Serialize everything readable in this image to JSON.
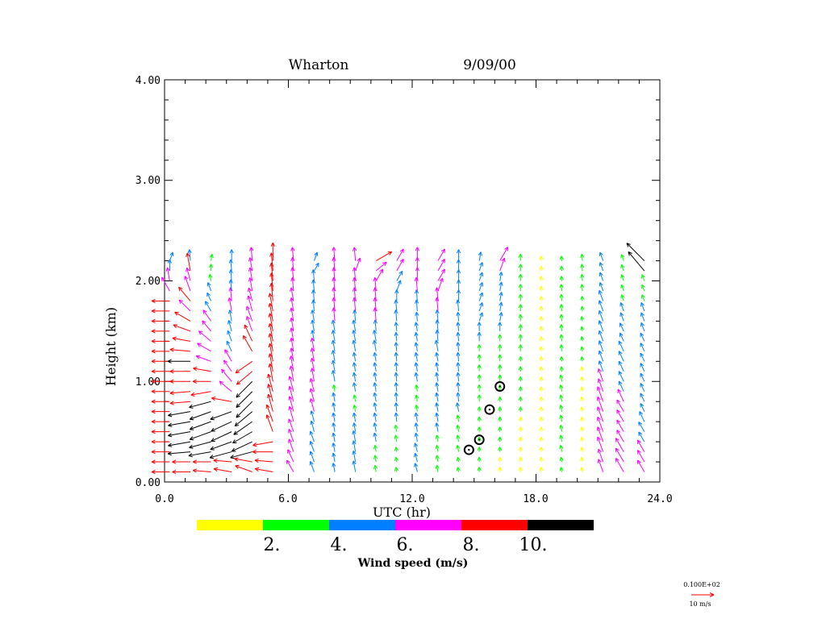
{
  "chart_data": {
    "type": "wind-profile",
    "title": "Wharton",
    "date": "9/09/00",
    "xlabel": "UTC (hr)",
    "ylabel": "Height (km)",
    "xlim": [
      0,
      24
    ],
    "ylim": [
      0,
      4
    ],
    "x_ticks": [
      "0.0",
      "6.0",
      "12.0",
      "18.0",
      "24.0"
    ],
    "y_ticks": [
      "0.00",
      "1.00",
      "2.00",
      "3.00",
      "4.00"
    ],
    "profile_times": [
      0.25,
      1.25,
      2.25,
      3.25,
      4.25,
      5.25,
      6.25,
      7.25,
      8.25,
      9.25,
      10.25,
      11.25,
      12.25,
      13.25,
      14.25,
      15.25,
      16.25,
      17.25,
      18.25,
      19.25,
      20.25,
      21.25,
      22.25,
      23.25
    ],
    "heights_km": [
      0.1,
      0.2,
      0.3,
      0.4,
      0.5,
      0.6,
      0.7,
      0.8,
      0.9,
      1.0,
      1.1,
      1.2,
      1.3,
      1.4,
      1.5,
      1.6,
      1.7,
      1.8,
      1.9,
      2.0,
      2.1,
      2.2
    ],
    "wind_speed_ms": [
      [
        8,
        8,
        8,
        8,
        8,
        8,
        8,
        8,
        8,
        8,
        8,
        8,
        8,
        8,
        8,
        8,
        8,
        8,
        7,
        6,
        5,
        4
      ],
      [
        8,
        8,
        10,
        10,
        10,
        10,
        10,
        9,
        9,
        9,
        9,
        10,
        9,
        8,
        8,
        8,
        7,
        8,
        7,
        6,
        8,
        5
      ],
      [
        8,
        8,
        10,
        10,
        10,
        10,
        10,
        10,
        9,
        8,
        8,
        7,
        7,
        7,
        6,
        6,
        5,
        4,
        4,
        3,
        3,
        3
      ],
      [
        8,
        8,
        10,
        10,
        10,
        10,
        10,
        9,
        7,
        7,
        6,
        6,
        5,
        5,
        5,
        5,
        6,
        6,
        5,
        5,
        5,
        5
      ],
      [
        8,
        8,
        10,
        10,
        10,
        10,
        10,
        10,
        10,
        10,
        9,
        9,
        8,
        8,
        7,
        7,
        7,
        6,
        6,
        6,
        6,
        6
      ],
      [
        8,
        8,
        9,
        9,
        8,
        8,
        8,
        8,
        8,
        8,
        8,
        8,
        8,
        8,
        8,
        8,
        8,
        8,
        8,
        8,
        8,
        8
      ],
      [
        6,
        6,
        6,
        6,
        6,
        7,
        7,
        7,
        7,
        7,
        7,
        6,
        6,
        6,
        6,
        6,
        6,
        6,
        6,
        6,
        6,
        6
      ],
      [
        5,
        5,
        5,
        5,
        5,
        5,
        6,
        6,
        6,
        6,
        6,
        6,
        6,
        5,
        5,
        5,
        5,
        5,
        5,
        5,
        4,
        4
      ],
      [
        4,
        4,
        4,
        4,
        4,
        4,
        4,
        4,
        3,
        5,
        5,
        5,
        5,
        5,
        5,
        6,
        6,
        6,
        6,
        6,
        6,
        6
      ],
      [
        5,
        5,
        5,
        5,
        4,
        4,
        3,
        3,
        4,
        4,
        4,
        4,
        5,
        5,
        5,
        5,
        6,
        6,
        6,
        6,
        6,
        6
      ],
      [
        3,
        3,
        3,
        4,
        4,
        4,
        4,
        4,
        4,
        4,
        4,
        4,
        5,
        5,
        5,
        6,
        6,
        6,
        6,
        6,
        6,
        8
      ],
      [
        2,
        2,
        2,
        3,
        3,
        4,
        4,
        4,
        4,
        4,
        4,
        4,
        4,
        4,
        4,
        5,
        5,
        5,
        5,
        5,
        6,
        6
      ],
      [
        4,
        4,
        4,
        4,
        4,
        4,
        3,
        3,
        3,
        4,
        4,
        4,
        4,
        4,
        4,
        4,
        5,
        5,
        6,
        6,
        6,
        6
      ],
      [
        3,
        3,
        3,
        3,
        4,
        4,
        4,
        4,
        4,
        4,
        4,
        4,
        5,
        5,
        5,
        5,
        6,
        6,
        6,
        6,
        6,
        6
      ],
      [
        2,
        2,
        3,
        3,
        3,
        3,
        4,
        4,
        4,
        4,
        4,
        4,
        4,
        4,
        4,
        4,
        5,
        5,
        5,
        5,
        5,
        5
      ],
      [
        2,
        2,
        2,
        2,
        2,
        2,
        2,
        3,
        3,
        3,
        3,
        3,
        3,
        4,
        4,
        4,
        4,
        4,
        4,
        4,
        4,
        4
      ],
      [
        1,
        1,
        2,
        2,
        2,
        2,
        2,
        2,
        3,
        3,
        3,
        3,
        3,
        3,
        4,
        4,
        4,
        4,
        4,
        4,
        6,
        7
      ],
      [
        1,
        1,
        1,
        1,
        1,
        1,
        2,
        2,
        2,
        2,
        2,
        2,
        3,
        3,
        3,
        3,
        3,
        3,
        3,
        3,
        3,
        3
      ],
      [
        1,
        1,
        1,
        1,
        1,
        1,
        1,
        1,
        1,
        1,
        1,
        1,
        1,
        1,
        1,
        1,
        1,
        1,
        1,
        1,
        1,
        1
      ],
      [
        2,
        2,
        3,
        3,
        3,
        3,
        3,
        3,
        3,
        3,
        2,
        2,
        3,
        3,
        3,
        3,
        3,
        3,
        3,
        2,
        2,
        2
      ],
      [
        1,
        1,
        1,
        1,
        1,
        1,
        1,
        1,
        1,
        1,
        1,
        2,
        2,
        2,
        2,
        2,
        2,
        2,
        3,
        3,
        3,
        3
      ],
      [
        6,
        6,
        7,
        7,
        7,
        7,
        7,
        7,
        6,
        6,
        5,
        5,
        5,
        5,
        5,
        5,
        5,
        5,
        4,
        4,
        4,
        4
      ],
      [
        7,
        7,
        7,
        6,
        6,
        6,
        6,
        6,
        5,
        5,
        5,
        5,
        5,
        4,
        4,
        4,
        4,
        3,
        3,
        3,
        3,
        3
      ],
      [
        6,
        6,
        6,
        5,
        5,
        5,
        4,
        4,
        4,
        4,
        4,
        4,
        4,
        4,
        4,
        4,
        4,
        3,
        3,
        3,
        11,
        11
      ]
    ],
    "wind_direction_deg": [
      [
        90,
        90,
        90,
        90,
        90,
        90,
        90,
        90,
        90,
        90,
        90,
        90,
        90,
        90,
        90,
        90,
        90,
        90,
        150,
        170,
        180,
        200
      ],
      [
        90,
        90,
        85,
        80,
        80,
        80,
        80,
        85,
        85,
        90,
        90,
        90,
        95,
        100,
        110,
        120,
        135,
        140,
        160,
        165,
        170,
        175
      ],
      [
        95,
        90,
        80,
        75,
        70,
        70,
        70,
        75,
        80,
        90,
        100,
        110,
        120,
        130,
        140,
        145,
        150,
        155,
        160,
        170,
        180,
        190
      ],
      [
        100,
        95,
        75,
        70,
        65,
        65,
        70,
        100,
        130,
        140,
        145,
        150,
        155,
        160,
        165,
        170,
        170,
        175,
        175,
        175,
        175,
        180
      ],
      [
        110,
        100,
        75,
        65,
        60,
        55,
        50,
        45,
        45,
        45,
        50,
        55,
        150,
        155,
        160,
        160,
        165,
        165,
        170,
        170,
        170,
        175
      ],
      [
        100,
        95,
        90,
        80,
        160,
        160,
        165,
        165,
        165,
        170,
        170,
        170,
        170,
        170,
        170,
        170,
        170,
        175,
        175,
        175,
        175,
        180
      ],
      [
        150,
        155,
        160,
        160,
        160,
        165,
        165,
        165,
        165,
        170,
        170,
        170,
        170,
        170,
        170,
        170,
        170,
        170,
        175,
        175,
        175,
        175
      ],
      [
        160,
        160,
        160,
        160,
        165,
        165,
        165,
        165,
        165,
        170,
        170,
        170,
        170,
        170,
        170,
        170,
        175,
        175,
        175,
        175,
        210,
        200
      ],
      [
        170,
        170,
        170,
        170,
        170,
        170,
        170,
        170,
        170,
        170,
        170,
        170,
        170,
        170,
        170,
        175,
        175,
        175,
        175,
        175,
        175,
        175
      ],
      [
        170,
        170,
        170,
        170,
        170,
        170,
        170,
        170,
        170,
        170,
        170,
        170,
        170,
        170,
        170,
        175,
        175,
        175,
        175,
        175,
        200,
        175
      ],
      [
        170,
        170,
        170,
        170,
        170,
        170,
        170,
        170,
        170,
        170,
        170,
        170,
        170,
        170,
        175,
        175,
        175,
        175,
        175,
        210,
        230,
        240
      ],
      [
        170,
        170,
        170,
        170,
        170,
        175,
        175,
        175,
        175,
        175,
        175,
        175,
        175,
        175,
        175,
        175,
        175,
        180,
        200,
        210,
        210,
        210
      ],
      [
        165,
        165,
        165,
        170,
        170,
        170,
        170,
        170,
        170,
        170,
        170,
        170,
        170,
        170,
        170,
        175,
        175,
        175,
        175,
        180,
        180,
        180
      ],
      [
        170,
        170,
        170,
        170,
        170,
        170,
        170,
        170,
        170,
        170,
        170,
        170,
        170,
        175,
        175,
        175,
        175,
        175,
        200,
        210,
        210,
        210
      ],
      [
        170,
        170,
        170,
        170,
        170,
        170,
        170,
        175,
        175,
        175,
        175,
        175,
        175,
        175,
        175,
        175,
        175,
        180,
        180,
        180,
        180,
        180
      ],
      [
        180,
        180,
        180,
        180,
        180,
        180,
        180,
        180,
        180,
        180,
        180,
        180,
        180,
        180,
        180,
        200,
        200,
        200,
        200,
        200,
        200,
        190
      ],
      [
        180,
        180,
        180,
        180,
        180,
        180,
        180,
        180,
        180,
        180,
        180,
        180,
        180,
        180,
        180,
        190,
        190,
        190,
        190,
        190,
        200,
        210
      ],
      [
        180,
        180,
        180,
        180,
        180,
        180,
        180,
        180,
        180,
        180,
        180,
        180,
        180,
        180,
        180,
        180,
        180,
        180,
        180,
        180,
        180,
        180
      ],
      [
        180,
        180,
        180,
        180,
        180,
        180,
        180,
        180,
        180,
        180,
        180,
        180,
        180,
        180,
        180,
        180,
        180,
        180,
        180,
        180,
        180,
        180
      ],
      [
        170,
        170,
        170,
        170,
        170,
        170,
        170,
        170,
        170,
        170,
        175,
        175,
        175,
        175,
        175,
        175,
        175,
        175,
        175,
        175,
        175,
        175
      ],
      [
        170,
        170,
        170,
        170,
        170,
        170,
        170,
        170,
        170,
        170,
        170,
        170,
        170,
        170,
        170,
        170,
        175,
        175,
        175,
        175,
        175,
        175
      ],
      [
        160,
        160,
        160,
        160,
        160,
        160,
        160,
        160,
        160,
        160,
        160,
        160,
        160,
        160,
        160,
        160,
        160,
        160,
        160,
        160,
        160,
        160
      ],
      [
        150,
        150,
        150,
        150,
        150,
        150,
        150,
        155,
        155,
        155,
        155,
        155,
        155,
        155,
        155,
        160,
        160,
        160,
        160,
        160,
        160,
        160
      ],
      [
        150,
        150,
        150,
        150,
        150,
        155,
        155,
        155,
        155,
        155,
        155,
        155,
        155,
        155,
        160,
        160,
        160,
        160,
        160,
        160,
        140,
        135
      ]
    ],
    "calm_markers": [
      {
        "time_hr": 14.75,
        "height_km": 0.32
      },
      {
        "time_hr": 15.25,
        "height_km": 0.42
      },
      {
        "time_hr": 15.75,
        "height_km": 0.72
      },
      {
        "time_hr": 16.25,
        "height_km": 0.95
      }
    ],
    "colorbar": {
      "label": "Wind speed (m/s)",
      "tick_labels": [
        "2.",
        "4.",
        "6.",
        "8.",
        "10."
      ],
      "bins": [
        {
          "min": 0,
          "max": 2,
          "color": "#ffff00"
        },
        {
          "min": 2,
          "max": 4,
          "color": "#00ff00"
        },
        {
          "min": 4,
          "max": 6,
          "color": "#0080ff"
        },
        {
          "min": 6,
          "max": 8,
          "color": "#ff00ff"
        },
        {
          "min": 8,
          "max": 10,
          "color": "#ff0000"
        },
        {
          "min": 10,
          "max": 12,
          "color": "#000000"
        }
      ]
    },
    "reference_vector": {
      "value_label": "0.100E+02",
      "caption": "10 m/s",
      "speed_ms": 10,
      "color": "#ff0000"
    }
  }
}
